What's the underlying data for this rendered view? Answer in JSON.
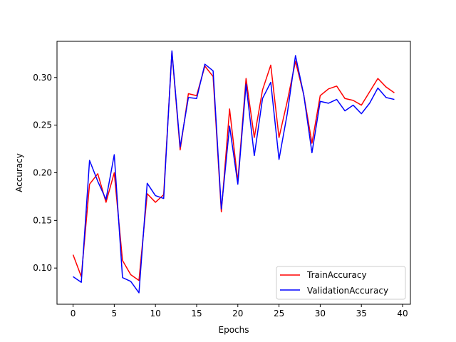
{
  "chart_data": {
    "type": "line",
    "title": "",
    "xlabel": "Epochs",
    "ylabel": "Accuracy",
    "xlim": [
      -1.95,
      40.95
    ],
    "ylim": [
      0.062,
      0.338
    ],
    "xticks": [
      0,
      5,
      10,
      15,
      20,
      25,
      30,
      35,
      40
    ],
    "yticks": [
      0.1,
      0.15,
      0.2,
      0.25,
      0.3
    ],
    "xtick_labels": [
      "0",
      "5",
      "10",
      "15",
      "20",
      "25",
      "30",
      "35",
      "40"
    ],
    "ytick_labels": [
      "0.10",
      "0.15",
      "0.20",
      "0.25",
      "0.30"
    ],
    "grid": false,
    "legend_position": "bottom-right",
    "x": [
      0,
      1,
      2,
      3,
      4,
      5,
      6,
      7,
      8,
      9,
      10,
      11,
      12,
      13,
      14,
      15,
      16,
      17,
      18,
      19,
      20,
      21,
      22,
      23,
      24,
      25,
      26,
      27,
      28,
      29,
      30,
      31,
      32,
      33,
      34,
      35,
      36,
      37,
      38,
      39
    ],
    "series": [
      {
        "name": "TrainAccuracy",
        "color": "#ff0000",
        "values": [
          0.114,
          0.091,
          0.188,
          0.199,
          0.169,
          0.2,
          0.108,
          0.093,
          0.087,
          0.178,
          0.169,
          0.177,
          0.327,
          0.224,
          0.283,
          0.281,
          0.312,
          0.301,
          0.159,
          0.267,
          0.191,
          0.299,
          0.237,
          0.287,
          0.313,
          0.237,
          0.275,
          0.317,
          0.282,
          0.231,
          0.281,
          0.288,
          0.291,
          0.278,
          0.276,
          0.271,
          0.285,
          0.299,
          0.29,
          0.284
        ]
      },
      {
        "name": "ValidationAccuracy",
        "color": "#0000ff",
        "values": [
          0.091,
          0.085,
          0.213,
          0.191,
          0.172,
          0.219,
          0.09,
          0.086,
          0.074,
          0.189,
          0.176,
          0.173,
          0.328,
          0.227,
          0.279,
          0.278,
          0.314,
          0.307,
          0.162,
          0.249,
          0.188,
          0.293,
          0.218,
          0.278,
          0.295,
          0.214,
          0.262,
          0.323,
          0.282,
          0.221,
          0.275,
          0.273,
          0.277,
          0.265,
          0.271,
          0.262,
          0.273,
          0.289,
          0.279,
          0.277
        ]
      }
    ]
  }
}
